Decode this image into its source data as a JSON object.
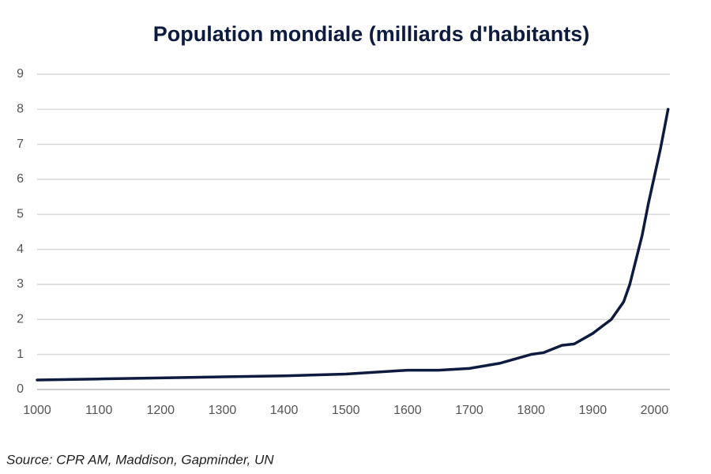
{
  "chart_data": {
    "type": "line",
    "title": "Population mondiale (milliards d'habitants)",
    "source": "Source: CPR AM, Maddison, Gapminder, UN",
    "x": [
      1000,
      1100,
      1200,
      1300,
      1400,
      1500,
      1600,
      1650,
      1700,
      1750,
      1800,
      1820,
      1850,
      1870,
      1900,
      1930,
      1950,
      1960,
      1970,
      1980,
      1990,
      2000,
      2010,
      2022
    ],
    "values": [
      0.27,
      0.3,
      0.33,
      0.36,
      0.39,
      0.44,
      0.55,
      0.55,
      0.6,
      0.75,
      1.0,
      1.05,
      1.26,
      1.3,
      1.6,
      2.0,
      2.5,
      3.0,
      3.7,
      4.4,
      5.3,
      6.1,
      6.9,
      8.0
    ],
    "color": "#0d1b3e",
    "xlim": [
      1000,
      2025
    ],
    "xticks": [
      1000,
      1100,
      1200,
      1300,
      1400,
      1500,
      1600,
      1700,
      1800,
      1900,
      2000
    ],
    "ylim": [
      0,
      9
    ],
    "yticks": [
      0,
      1,
      2,
      3,
      4,
      5,
      6,
      7,
      8,
      9
    ],
    "grid": true
  }
}
